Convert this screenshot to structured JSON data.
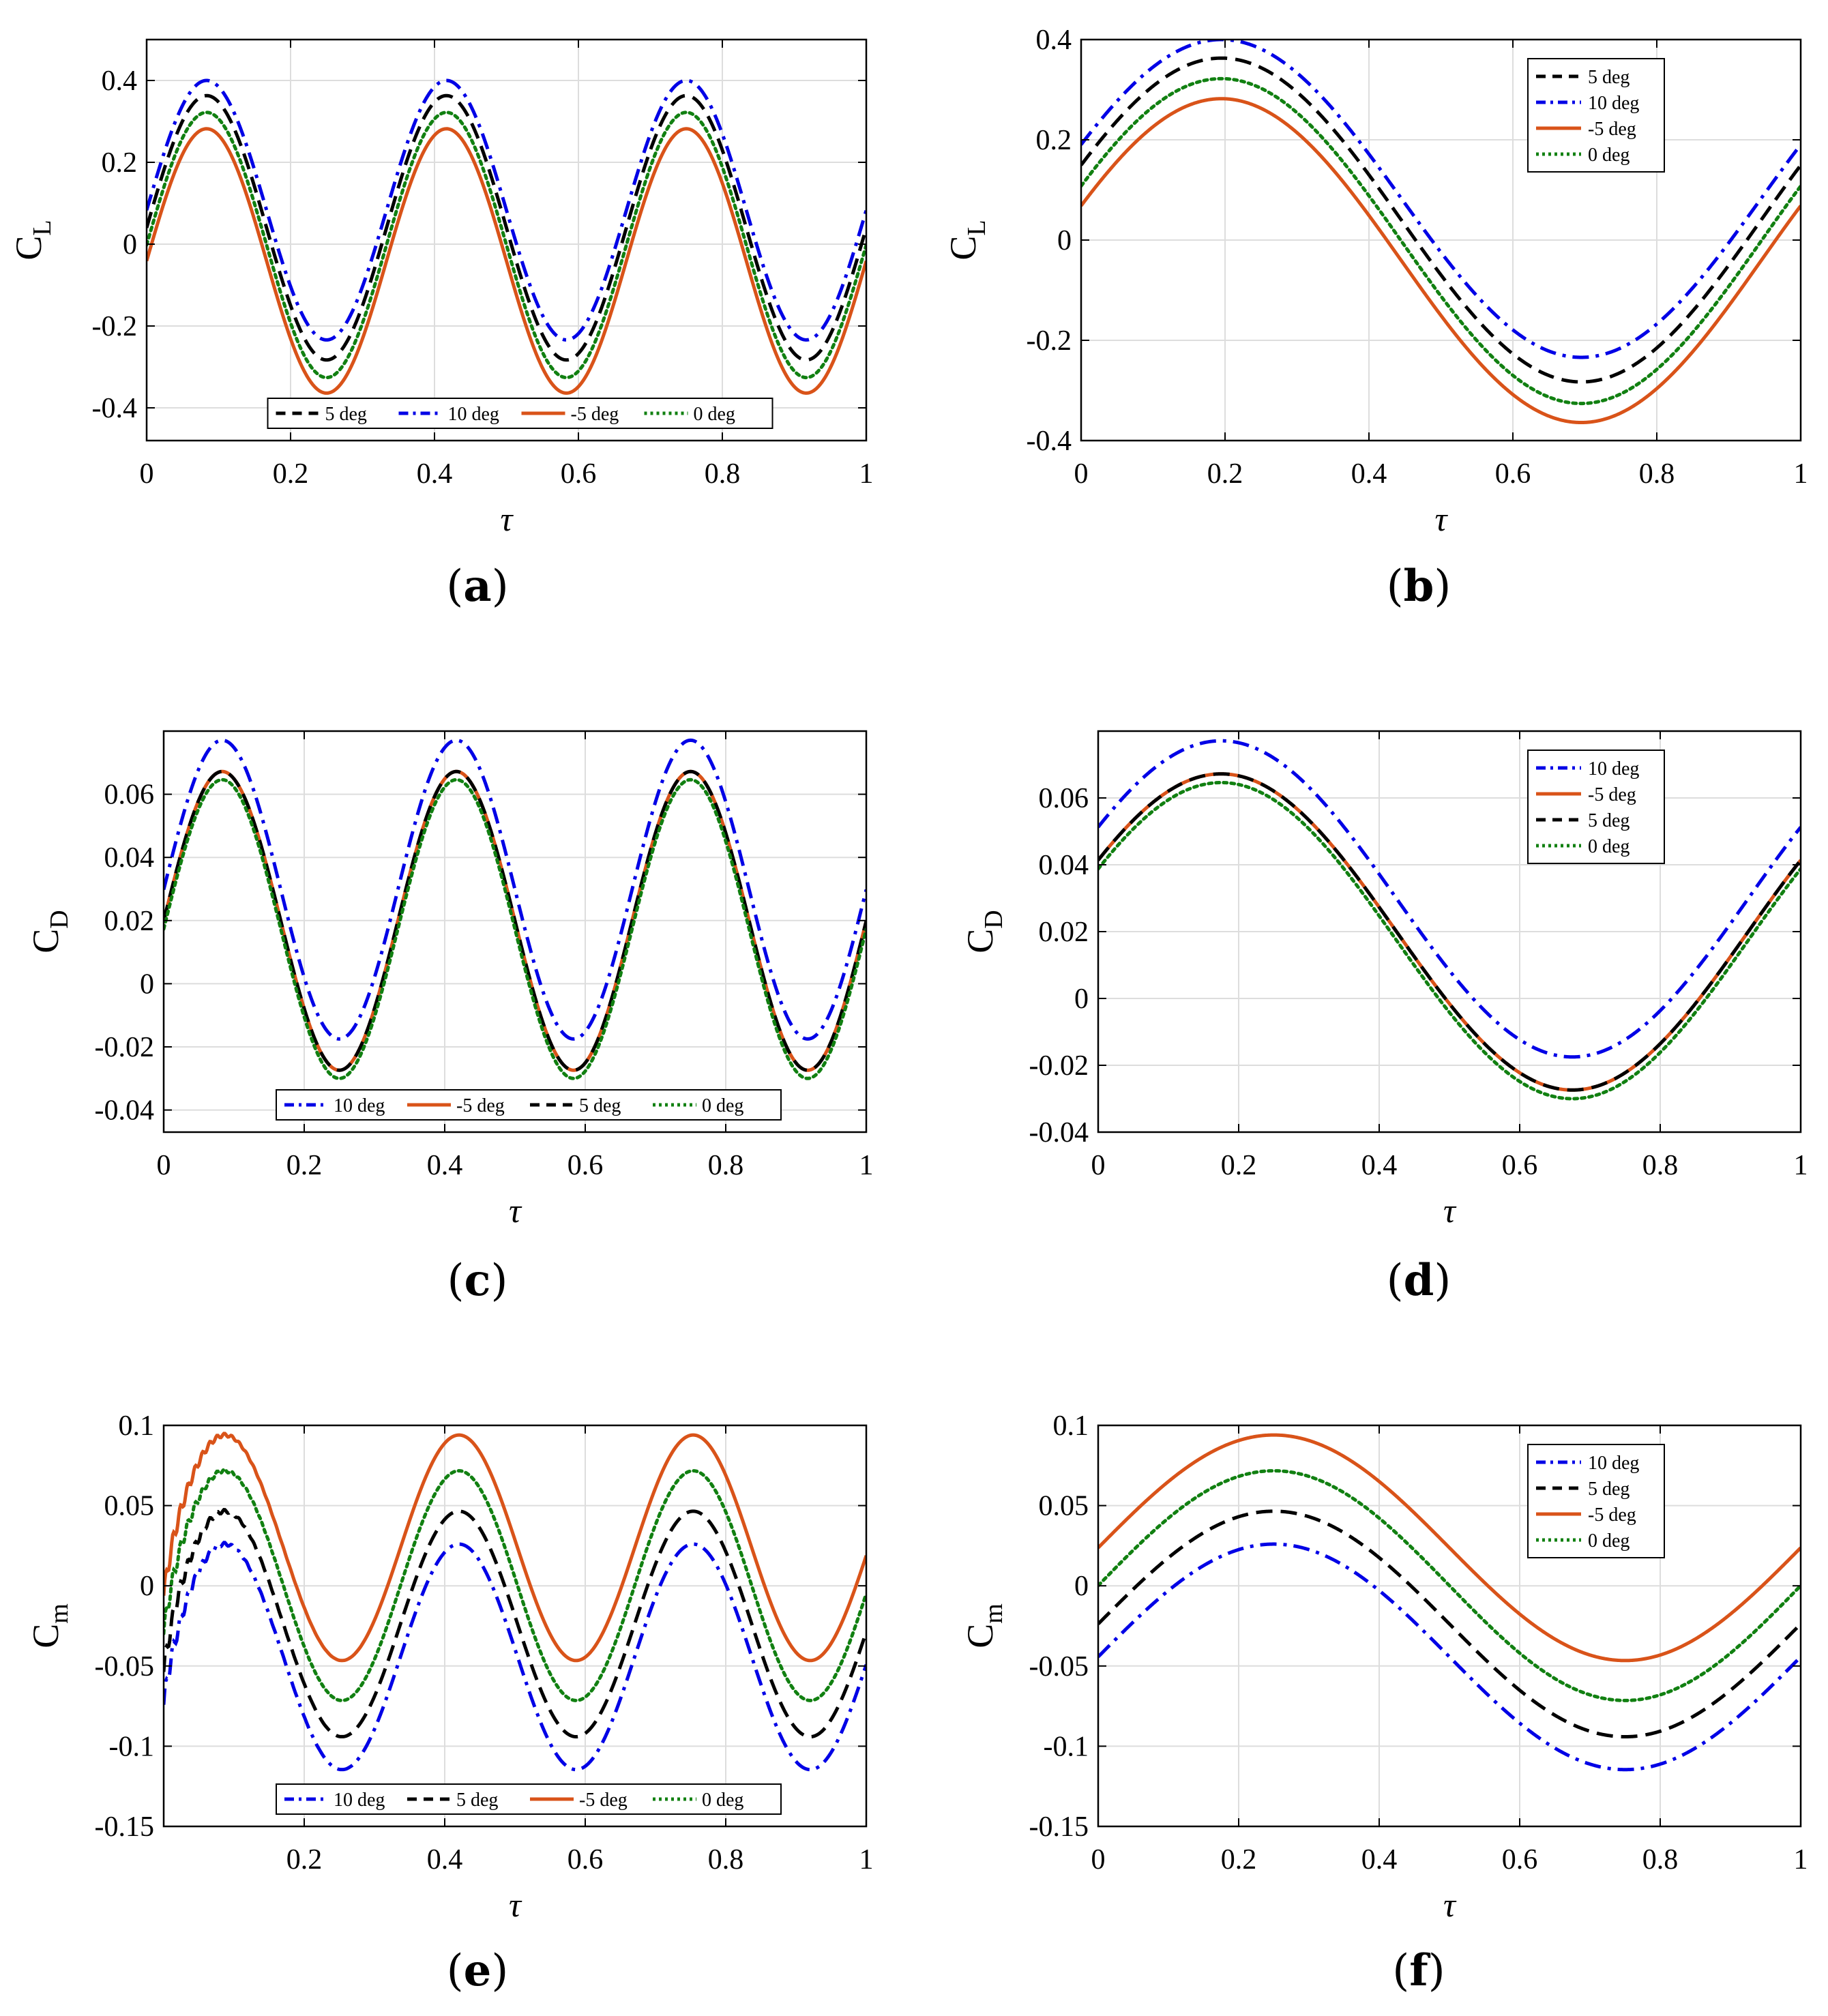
{
  "figure": {
    "panel_count": 6
  },
  "colors": {
    "5deg": "#000000",
    "10deg": "#0000e6",
    "m5deg": "#d95319",
    "0deg": "#118011",
    "grid": "#dddddd"
  },
  "chart_data": [
    {
      "id": "a",
      "type": "line",
      "caption": "a",
      "xlabel": "τ",
      "ylabel": "C",
      "ylabel_sub": "L",
      "xlim": [
        0,
        1
      ],
      "ylim": [
        -0.48,
        0.5
      ],
      "xticks": [
        0,
        0.2,
        0.4,
        0.6,
        0.8,
        1
      ],
      "xtick_labels": [
        "0",
        "0.2",
        "0.4",
        "0.6",
        "0.8",
        "1"
      ],
      "yticks": [
        -0.4,
        -0.2,
        0,
        0.2,
        0.4
      ],
      "ytick_labels": [
        "-0.4",
        "-0.2",
        "0",
        "0.2",
        "0.4"
      ],
      "grid": true,
      "legend_position": "bottom-center",
      "legend_orientation": "horizontal",
      "periods": 3,
      "series": [
        {
          "name": "5 deg",
          "key": "5deg",
          "style": "dashed",
          "mean": 0.04,
          "amp": 0.323,
          "phase": 0.0,
          "extra_noise": 0
        },
        {
          "name": "10 deg",
          "key": "10deg",
          "style": "dashdot",
          "mean": 0.083,
          "amp": 0.317,
          "phase": 0.0,
          "extra_noise": 0
        },
        {
          "name": "-5 deg",
          "key": "m5deg",
          "style": "solid",
          "mean": -0.041,
          "amp": 0.323,
          "phase": 0.0,
          "extra_noise": 0
        },
        {
          "name": "0 deg",
          "key": "0deg",
          "style": "dotted",
          "mean": -0.002,
          "amp": 0.324,
          "phase": 0.0,
          "extra_noise": 0
        }
      ]
    },
    {
      "id": "b",
      "type": "line",
      "caption": "b",
      "xlabel": "τ",
      "ylabel": "C",
      "ylabel_sub": "L",
      "xlim": [
        0,
        1
      ],
      "ylim": [
        -0.4,
        0.4
      ],
      "xticks": [
        0,
        0.2,
        0.4,
        0.6,
        0.8,
        1
      ],
      "xtick_labels": [
        "0",
        "0.2",
        "0.4",
        "0.6",
        "0.8",
        "1"
      ],
      "yticks": [
        -0.4,
        -0.2,
        0,
        0.2,
        0.4
      ],
      "ytick_labels": [
        "-0.4",
        "-0.2",
        "0",
        "0.2",
        "0.4"
      ],
      "grid": true,
      "legend_position": "top-right",
      "legend_orientation": "vertical",
      "periods": 1,
      "series": [
        {
          "name": "5 deg",
          "key": "5deg",
          "style": "dashed",
          "mean": 0.04,
          "amp": 0.323,
          "phase": 0.055,
          "extra_noise": 0
        },
        {
          "name": "10 deg",
          "key": "10deg",
          "style": "dashdot",
          "mean": 0.083,
          "amp": 0.317,
          "phase": 0.055,
          "extra_noise": 0
        },
        {
          "name": "-5 deg",
          "key": "m5deg",
          "style": "solid",
          "mean": -0.041,
          "amp": 0.323,
          "phase": 0.055,
          "extra_noise": 0
        },
        {
          "name": "0 deg",
          "key": "0deg",
          "style": "dotted",
          "mean": -0.002,
          "amp": 0.324,
          "phase": 0.055,
          "extra_noise": 0
        }
      ]
    },
    {
      "id": "c",
      "type": "line",
      "caption": "c",
      "xlabel": "τ",
      "ylabel": "C",
      "ylabel_sub": "D",
      "xlim": [
        0,
        1
      ],
      "ylim": [
        -0.047,
        0.08
      ],
      "xticks": [
        0,
        0.2,
        0.4,
        0.6,
        0.8,
        1
      ],
      "xtick_labels": [
        "0",
        "0.2",
        "0.4",
        "0.6",
        "0.8",
        "1"
      ],
      "yticks": [
        -0.04,
        -0.02,
        0,
        0.02,
        0.04,
        0.06
      ],
      "ytick_labels": [
        "-0.04",
        "-0.02",
        "0",
        "0.02",
        "0.04",
        "0.06"
      ],
      "grid": true,
      "legend_position": "bottom-center",
      "legend_orientation": "horizontal",
      "periods": 3,
      "series": [
        {
          "name": "10 deg",
          "key": "10deg",
          "style": "dashdot",
          "mean": 0.0298,
          "amp": 0.0473,
          "phase": 0.0,
          "extra_noise": 0
        },
        {
          "name": "-5 deg",
          "key": "m5deg",
          "style": "solid",
          "mean": 0.0199,
          "amp": 0.0473,
          "phase": 0.0,
          "extra_noise": 0
        },
        {
          "name": "5 deg",
          "key": "5deg",
          "style": "dashed",
          "mean": 0.0199,
          "amp": 0.0473,
          "phase": 0.0,
          "extra_noise": 0
        },
        {
          "name": "0 deg",
          "key": "0deg",
          "style": "dotted",
          "mean": 0.0173,
          "amp": 0.0473,
          "phase": 0.0,
          "extra_noise": 0
        }
      ]
    },
    {
      "id": "d",
      "type": "line",
      "caption": "d",
      "xlabel": "τ",
      "ylabel": "C",
      "ylabel_sub": "D",
      "xlim": [
        0,
        1
      ],
      "ylim": [
        -0.04,
        0.08
      ],
      "xticks": [
        0,
        0.2,
        0.4,
        0.6,
        0.8,
        1
      ],
      "xtick_labels": [
        "0",
        "0.2",
        "0.4",
        "0.6",
        "0.8",
        "1"
      ],
      "yticks": [
        -0.04,
        -0.02,
        0,
        0.02,
        0.04,
        0.06
      ],
      "ytick_labels": [
        "-0.04",
        "-0.02",
        "0",
        "0.02",
        "0.04",
        "0.06"
      ],
      "grid": true,
      "legend_position": "top-right",
      "legend_orientation": "vertical",
      "periods": 1,
      "series": [
        {
          "name": "10 deg",
          "key": "10deg",
          "style": "dashdot",
          "mean": 0.0298,
          "amp": 0.0473,
          "phase": 0.075,
          "extra_noise": 0
        },
        {
          "name": "-5 deg",
          "key": "m5deg",
          "style": "solid",
          "mean": 0.0199,
          "amp": 0.0473,
          "phase": 0.075,
          "extra_noise": 0
        },
        {
          "name": "5 deg",
          "key": "5deg",
          "style": "dashed",
          "mean": 0.0199,
          "amp": 0.0473,
          "phase": 0.075,
          "extra_noise": 0
        },
        {
          "name": "0 deg",
          "key": "0deg",
          "style": "dotted",
          "mean": 0.0173,
          "amp": 0.0473,
          "phase": 0.075,
          "extra_noise": 0
        }
      ]
    },
    {
      "id": "e",
      "type": "line",
      "caption": "e",
      "xlabel": "τ",
      "ylabel": "C",
      "ylabel_sub": "m",
      "xlim": [
        0,
        1
      ],
      "ylim": [
        -0.15,
        0.1
      ],
      "xticks": [
        0.2,
        0.4,
        0.6,
        0.8,
        1
      ],
      "xtick_labels": [
        "0.2",
        "0.4",
        "0.6",
        "0.8",
        "1"
      ],
      "yticks": [
        -0.15,
        -0.1,
        -0.05,
        0,
        0.05,
        0.1
      ],
      "ytick_labels": [
        "-0.15",
        "-0.1",
        "-0.05",
        "0",
        "0.05",
        "0.1"
      ],
      "grid": true,
      "legend_position": "bottom-center",
      "legend_orientation": "horizontal",
      "periods": 3,
      "series": [
        {
          "name": "10 deg",
          "key": "10deg",
          "style": "dashdot",
          "mean": -0.0443,
          "amp": 0.0703,
          "phase": -0.011,
          "extra_noise": 1
        },
        {
          "name": "5 deg",
          "key": "5deg",
          "style": "dashed",
          "mean": -0.0238,
          "amp": 0.0703,
          "phase": -0.011,
          "extra_noise": 1
        },
        {
          "name": "-5 deg",
          "key": "m5deg",
          "style": "solid",
          "mean": 0.0237,
          "amp": 0.0703,
          "phase": -0.011,
          "extra_noise": 1
        },
        {
          "name": "0 deg",
          "key": "0deg",
          "style": "dotted",
          "mean": 0.0001,
          "amp": 0.0716,
          "phase": -0.011,
          "extra_noise": 1
        }
      ]
    },
    {
      "id": "f",
      "type": "line",
      "caption": "f",
      "xlabel": "τ",
      "ylabel": "C",
      "ylabel_sub": "m",
      "xlim": [
        0,
        1
      ],
      "ylim": [
        -0.15,
        0.1
      ],
      "xticks": [
        0,
        0.2,
        0.4,
        0.6,
        0.8,
        1
      ],
      "xtick_labels": [
        "0",
        "0.2",
        "0.4",
        "0.6",
        "0.8",
        "1"
      ],
      "yticks": [
        -0.15,
        -0.1,
        -0.05,
        0,
        0.05,
        0.1
      ],
      "ytick_labels": [
        "-0.15",
        "-0.1",
        "-0.05",
        "0",
        "0.05",
        "0.1"
      ],
      "grid": true,
      "legend_position": "top-right",
      "legend_orientation": "vertical",
      "periods": 1,
      "series": [
        {
          "name": "10 deg",
          "key": "10deg",
          "style": "dashdot",
          "mean": -0.0443,
          "amp": 0.0703,
          "phase": 0.0,
          "extra_noise": 0
        },
        {
          "name": "5 deg",
          "key": "5deg",
          "style": "dashed",
          "mean": -0.0238,
          "amp": 0.0703,
          "phase": 0.0,
          "extra_noise": 0
        },
        {
          "name": "-5 deg",
          "key": "m5deg",
          "style": "solid",
          "mean": 0.0237,
          "amp": 0.0703,
          "phase": 0.0,
          "extra_noise": 0
        },
        {
          "name": "0 deg",
          "key": "0deg",
          "style": "dotted",
          "mean": 0.0001,
          "amp": 0.0716,
          "phase": 0.0,
          "extra_noise": 0
        }
      ]
    }
  ]
}
